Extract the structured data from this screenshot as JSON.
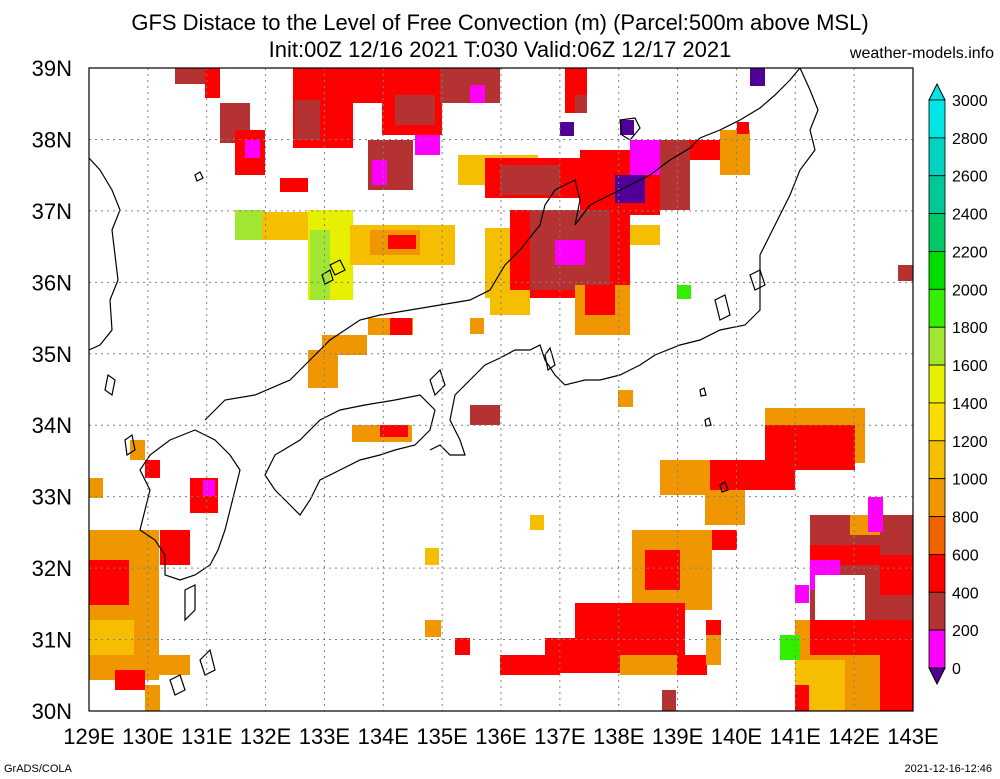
{
  "header": {
    "title_line1": "GFS Distace to the Level of Free Convection (m) (Parcel:500m above MSL)",
    "title_line2": "Init:00Z 12/16 2021 T:030 Valid:06Z 12/17 2021",
    "site": "weather-models.info"
  },
  "footer": {
    "credit": "GrADS/COLA",
    "timestamp": "2021-12-16-12:46"
  },
  "map": {
    "lon_labels": [
      "129E",
      "130E",
      "131E",
      "132E",
      "133E",
      "134E",
      "135E",
      "136E",
      "137E",
      "138E",
      "139E",
      "140E",
      "141E",
      "142E",
      "143E"
    ],
    "lat_labels": [
      "39N",
      "38N",
      "37N",
      "36N",
      "35N",
      "34N",
      "33N",
      "32N",
      "31N",
      "30N"
    ],
    "lon_range": [
      129,
      143
    ],
    "lat_range": [
      30,
      39
    ],
    "grid": true
  },
  "legend": {
    "levels": [
      "3000",
      "2800",
      "2600",
      "2400",
      "2200",
      "2000",
      "1800",
      "1600",
      "1400",
      "1200",
      "1000",
      "800",
      "600",
      "400",
      "200",
      "0"
    ],
    "colors": [
      "#f0fff0",
      "#00e6e6",
      "#00d2c0",
      "#00c896",
      "#00c864",
      "#00dc00",
      "#32f000",
      "#a0e632",
      "#e6f000",
      "#fadc00",
      "#f5be00",
      "#f09600",
      "#f06400",
      "#ff0000",
      "#b43232",
      "#ff00ff",
      "#500096"
    ],
    "arrow_top_color": "#00e6e6",
    "arrow_bottom_color": "#500096"
  }
}
